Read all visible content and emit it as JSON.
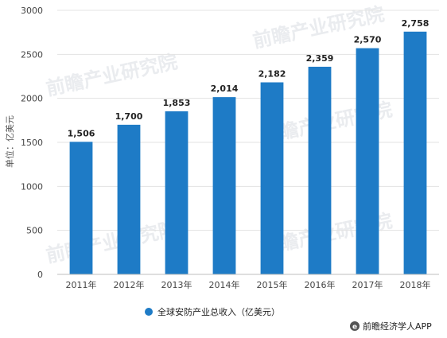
{
  "chart_data": {
    "type": "bar",
    "categories": [
      "2011年",
      "2012年",
      "2013年",
      "2014年",
      "2015年",
      "2016年",
      "2017年",
      "2018年"
    ],
    "series": [
      {
        "name": "全球安防产业总收入（亿美元）",
        "values": [
          1506,
          1700,
          1853,
          2014,
          2182,
          2359,
          2570,
          2758
        ]
      }
    ],
    "data_labels": [
      "1,506",
      "1,700",
      "1,853",
      "2,014",
      "2,182",
      "2,359",
      "2,570",
      "2,758"
    ],
    "ylabel": "单位：亿美元",
    "ylim": [
      0,
      3000
    ],
    "yticks": [
      "0",
      "500",
      "1000",
      "1500",
      "2000",
      "2500",
      "3000"
    ],
    "grid": true,
    "legend_position": "bottom",
    "bar_color": "#1e7bc6"
  },
  "watermark_text": "前瞻产业研究院",
  "source_label": "前瞻经济学人APP"
}
